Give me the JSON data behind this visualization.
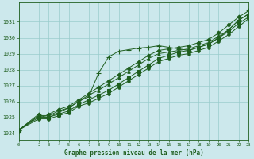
{
  "title": "Graphe pression niveau de la mer (hPa)",
  "bg_color": "#cce8ec",
  "grid_color": "#99cccc",
  "line_color": "#1e5e1e",
  "xlim": [
    0,
    23
  ],
  "ylim": [
    1023.6,
    1032.2
  ],
  "xticks": [
    0,
    2,
    3,
    4,
    5,
    6,
    7,
    8,
    9,
    10,
    11,
    12,
    13,
    14,
    15,
    16,
    17,
    18,
    19,
    20,
    21,
    22,
    23
  ],
  "yticks": [
    1024,
    1025,
    1026,
    1027,
    1028,
    1029,
    1030,
    1031
  ],
  "series": [
    {
      "x": [
        0,
        2,
        3,
        4,
        5,
        6,
        7,
        8,
        9,
        10,
        11,
        12,
        13,
        14,
        15,
        16,
        17,
        18,
        19,
        20,
        21,
        22,
        23
      ],
      "y": [
        1024.2,
        1025.2,
        1025.2,
        1025.5,
        1025.7,
        1026.1,
        1026.5,
        1026.9,
        1027.3,
        1027.7,
        1028.1,
        1028.5,
        1028.9,
        1029.2,
        1029.3,
        1029.4,
        1029.5,
        1029.7,
        1029.9,
        1030.3,
        1030.8,
        1031.3,
        1031.7
      ],
      "marker": "D",
      "markersize": 2.5
    },
    {
      "x": [
        0,
        2,
        3,
        4,
        5,
        6,
        7,
        8,
        9,
        10,
        11,
        12,
        13,
        14,
        15,
        16,
        17,
        18,
        19,
        20,
        21,
        22,
        23
      ],
      "y": [
        1024.2,
        1025.1,
        1025.1,
        1025.4,
        1025.6,
        1026.0,
        1026.4,
        1026.7,
        1027.1,
        1027.5,
        1027.9,
        1028.3,
        1028.7,
        1029.0,
        1029.1,
        1029.2,
        1029.3,
        1029.5,
        1029.7,
        1030.1,
        1030.5,
        1031.1,
        1031.5
      ],
      "marker": "^",
      "markersize": 2.5
    },
    {
      "x": [
        0,
        2,
        3,
        4,
        5,
        6,
        7,
        8,
        9,
        10,
        11,
        12,
        13,
        14,
        15,
        16,
        17,
        18,
        19,
        20,
        21,
        22,
        23
      ],
      "y": [
        1024.2,
        1025.1,
        1025.0,
        1025.3,
        1025.6,
        1026.0,
        1026.3,
        1027.8,
        1028.8,
        1029.15,
        1029.25,
        1029.35,
        1029.4,
        1029.5,
        1029.4,
        1029.3,
        1029.2,
        1029.4,
        1029.6,
        1030.0,
        1030.5,
        1031.1,
        1031.5
      ],
      "marker": "+",
      "markersize": 4
    },
    {
      "x": [
        0,
        2,
        3,
        4,
        5,
        6,
        7,
        8,
        9,
        10,
        11,
        12,
        13,
        14,
        15,
        16,
        17,
        18,
        19,
        20,
        21,
        22,
        23
      ],
      "y": [
        1024.2,
        1025.0,
        1025.0,
        1025.2,
        1025.4,
        1025.8,
        1026.1,
        1026.4,
        1026.7,
        1027.1,
        1027.5,
        1027.9,
        1028.3,
        1028.7,
        1028.9,
        1029.1,
        1029.2,
        1029.4,
        1029.6,
        1030.0,
        1030.4,
        1030.9,
        1031.3
      ],
      "marker": "s",
      "markersize": 2.5
    },
    {
      "x": [
        0,
        2,
        3,
        4,
        5,
        6,
        7,
        8,
        9,
        10,
        11,
        12,
        13,
        14,
        15,
        16,
        17,
        18,
        19,
        20,
        21,
        22,
        23
      ],
      "y": [
        1024.2,
        1024.9,
        1024.9,
        1025.1,
        1025.3,
        1025.7,
        1025.9,
        1026.2,
        1026.5,
        1026.9,
        1027.3,
        1027.7,
        1028.1,
        1028.5,
        1028.7,
        1028.9,
        1029.0,
        1029.2,
        1029.4,
        1029.8,
        1030.2,
        1030.7,
        1031.2
      ],
      "marker": "o",
      "markersize": 2.5
    }
  ]
}
